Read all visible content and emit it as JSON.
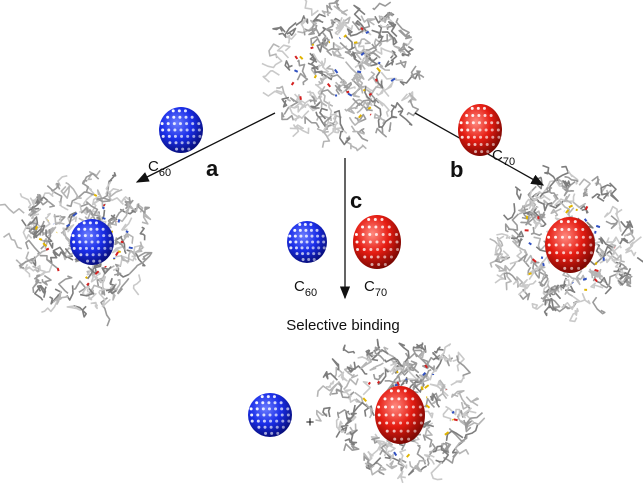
{
  "labels": {
    "a": "a",
    "b": "b",
    "c": "c",
    "selective_binding": "Selective binding",
    "plus": "+"
  },
  "species": {
    "c60_top": {
      "base": "C",
      "sub": "60"
    },
    "c70_top": {
      "base": "C",
      "sub": "70"
    },
    "c60_mid": {
      "base": "C",
      "sub": "60"
    },
    "c70_mid": {
      "base": "C",
      "sub": "70"
    }
  }
}
